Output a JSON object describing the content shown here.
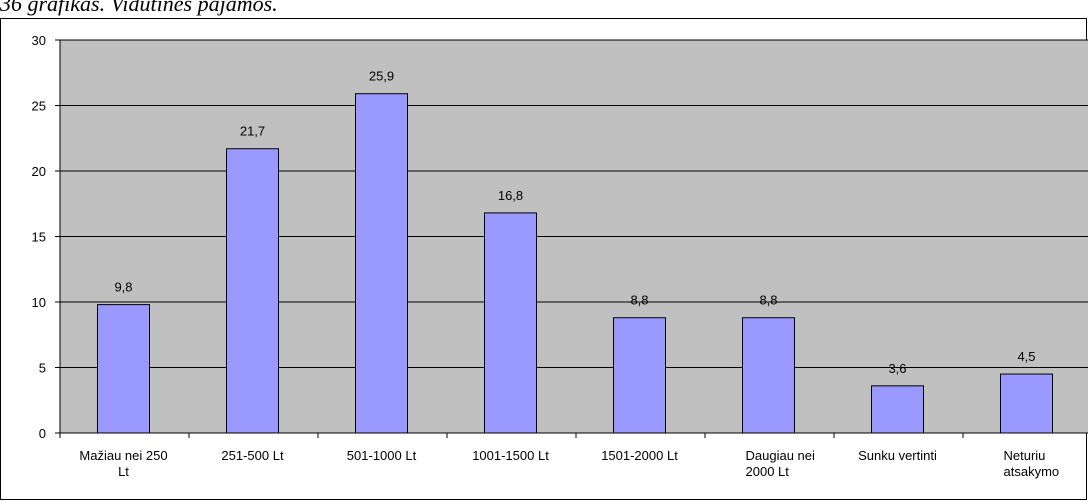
{
  "caption": "36 grafikas. Vidutinės pajamos.",
  "colors": {
    "plot_background": "#c0c0c0",
    "bar_fill": "#9999ff",
    "bar_stroke": "#000000",
    "gridline": "#000000"
  },
  "chart_data": {
    "type": "bar",
    "categories": [
      [
        "Mažiau nei 250",
        "Lt"
      ],
      [
        "251-500 Lt"
      ],
      [
        "501-1000 Lt"
      ],
      [
        "1001-1500 Lt"
      ],
      [
        "1501-2000 Lt"
      ],
      [
        "Daugiau nei",
        "2000 Lt"
      ],
      [
        "Sunku  vertinti"
      ],
      [
        "Neturiu",
        "atsakymo"
      ]
    ],
    "values": [
      9.8,
      21.7,
      25.9,
      16.8,
      8.8,
      8.8,
      3.6,
      4.5
    ],
    "value_labels": [
      "9,8",
      "21,7",
      "25,9",
      "16,8",
      "8,8",
      "8,8",
      "3,6",
      "4,5"
    ],
    "yticks": [
      0,
      5,
      10,
      15,
      20,
      25,
      30
    ],
    "ylim": [
      0,
      30
    ],
    "grid": true,
    "legend": "none"
  }
}
